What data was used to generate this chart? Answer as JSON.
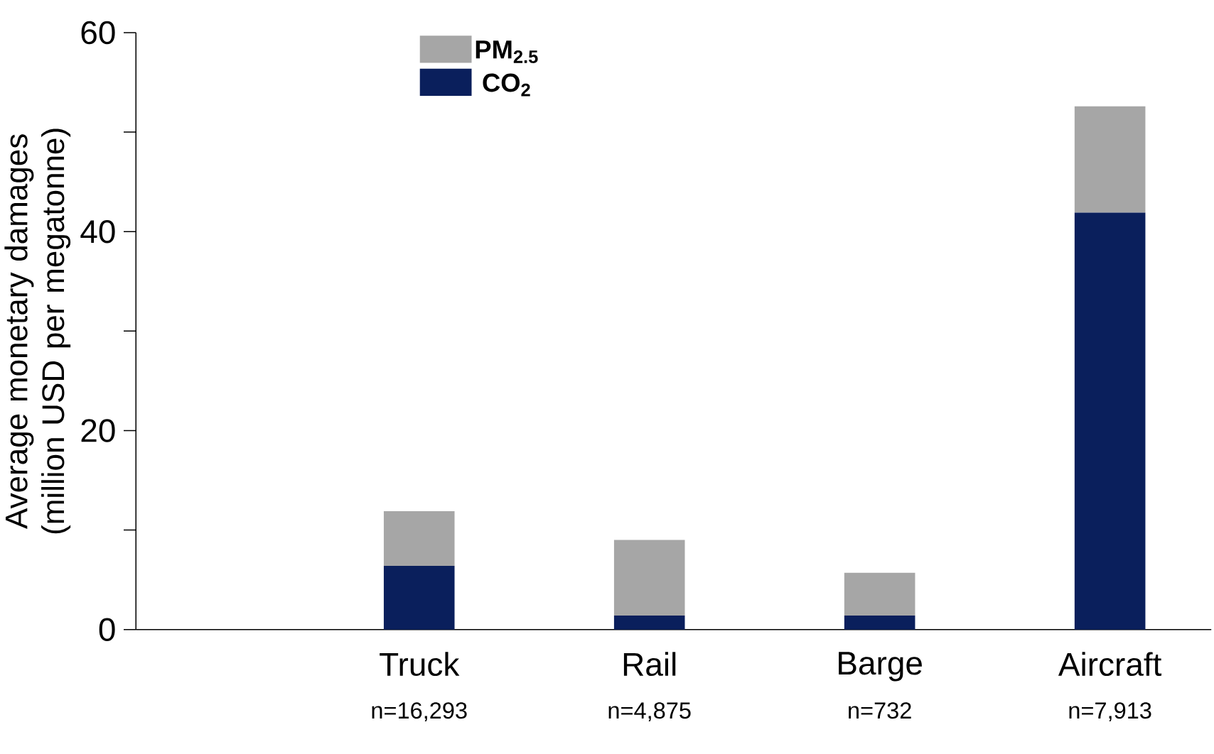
{
  "chart_data": {
    "type": "bar",
    "stacked": true,
    "ylabel": "Average monetary damages (million USD per megatonne)",
    "categories": [
      "Truck",
      "Rail",
      "Barge",
      "Aircraft"
    ],
    "series": [
      {
        "name": "CO$_{2}$",
        "color": "#0a1f5c",
        "values": [
          6.4,
          1.4,
          1.4,
          41.9
        ]
      },
      {
        "name": "PM$_{2.5}$",
        "color": "#a6a6a6",
        "values": [
          5.5,
          7.6,
          4.3,
          10.7
        ]
      }
    ],
    "ylim": [
      0,
      60
    ],
    "yticks": [
      0,
      {
        "value": 10,
        "label": null
      },
      20,
      {
        "value": 30,
        "label": null
      },
      40,
      {
        "value": 50,
        "label": null
      },
      60
    ],
    "annotations": [
      "n=16,293",
      "n=4,875",
      "n=732",
      "n=7,913"
    ],
    "legend": "top left",
    "grid": false
  }
}
